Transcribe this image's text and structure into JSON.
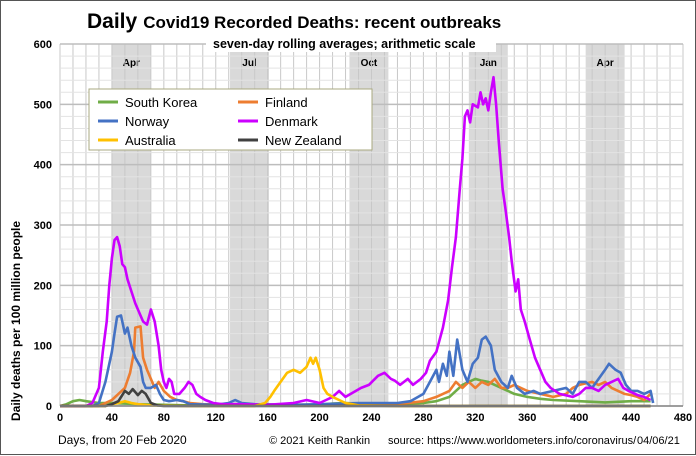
{
  "chart_data": {
    "type": "line",
    "title_bold": "Daily",
    "title_rest": "Covid19 Recorded Deaths: recent outbreaks",
    "subtitle": "seven-day rolling averages; arithmetic scale",
    "xlabel": "Days, from 20 Feb 2020",
    "ylabel": "Daily deaths per 100 million people",
    "xlim": [
      0,
      480
    ],
    "ylim": [
      0,
      600
    ],
    "xticks": [
      0,
      40,
      80,
      120,
      160,
      200,
      240,
      280,
      320,
      360,
      400,
      440,
      480
    ],
    "yticks": [
      0,
      100,
      200,
      300,
      400,
      500,
      600
    ],
    "grid": true,
    "legend_position": "top-left",
    "month_bands": [
      {
        "label": "Apr",
        "start": 40,
        "end": 70
      },
      {
        "label": "Jul",
        "start": 131,
        "end": 161
      },
      {
        "label": "Oct",
        "start": 223,
        "end": 253
      },
      {
        "label": "Jan",
        "start": 315,
        "end": 345
      },
      {
        "label": "Apr",
        "start": 405,
        "end": 435
      }
    ],
    "series": [
      {
        "name": "South Korea",
        "color": "#70ad47",
        "points": [
          [
            0,
            0
          ],
          [
            5,
            3
          ],
          [
            10,
            8
          ],
          [
            15,
            10
          ],
          [
            20,
            8
          ],
          [
            30,
            5
          ],
          [
            40,
            5
          ],
          [
            50,
            4
          ],
          [
            60,
            3
          ],
          [
            80,
            2
          ],
          [
            100,
            1
          ],
          [
            120,
            1
          ],
          [
            180,
            1
          ],
          [
            200,
            2
          ],
          [
            210,
            4
          ],
          [
            220,
            5
          ],
          [
            230,
            4
          ],
          [
            240,
            3
          ],
          [
            260,
            3
          ],
          [
            280,
            5
          ],
          [
            290,
            8
          ],
          [
            300,
            15
          ],
          [
            305,
            25
          ],
          [
            310,
            35
          ],
          [
            315,
            40
          ],
          [
            320,
            45
          ],
          [
            325,
            42
          ],
          [
            330,
            40
          ],
          [
            335,
            35
          ],
          [
            340,
            30
          ],
          [
            350,
            20
          ],
          [
            360,
            15
          ],
          [
            370,
            12
          ],
          [
            380,
            10
          ],
          [
            400,
            8
          ],
          [
            420,
            6
          ],
          [
            440,
            8
          ],
          [
            455,
            8
          ]
        ]
      },
      {
        "name": "Finland",
        "color": "#ed7d31",
        "points": [
          [
            0,
            0
          ],
          [
            30,
            0
          ],
          [
            35,
            5
          ],
          [
            40,
            10
          ],
          [
            45,
            20
          ],
          [
            50,
            30
          ],
          [
            54,
            55
          ],
          [
            57,
            90
          ],
          [
            58,
            130
          ],
          [
            62,
            132
          ],
          [
            64,
            80
          ],
          [
            67,
            60
          ],
          [
            70,
            45
          ],
          [
            73,
            30
          ],
          [
            76,
            40
          ],
          [
            80,
            25
          ],
          [
            85,
            15
          ],
          [
            90,
            10
          ],
          [
            95,
            8
          ],
          [
            100,
            5
          ],
          [
            110,
            3
          ],
          [
            200,
            2
          ],
          [
            230,
            2
          ],
          [
            260,
            3
          ],
          [
            280,
            8
          ],
          [
            290,
            15
          ],
          [
            300,
            25
          ],
          [
            305,
            40
          ],
          [
            310,
            30
          ],
          [
            315,
            40
          ],
          [
            320,
            30
          ],
          [
            325,
            40
          ],
          [
            330,
            35
          ],
          [
            335,
            45
          ],
          [
            340,
            30
          ],
          [
            345,
            30
          ],
          [
            350,
            35
          ],
          [
            360,
            25
          ],
          [
            370,
            20
          ],
          [
            380,
            15
          ],
          [
            390,
            20
          ],
          [
            395,
            30
          ],
          [
            400,
            35
          ],
          [
            410,
            40
          ],
          [
            415,
            35
          ],
          [
            420,
            40
          ],
          [
            425,
            30
          ],
          [
            430,
            25
          ],
          [
            435,
            20
          ],
          [
            440,
            18
          ],
          [
            445,
            15
          ],
          [
            450,
            10
          ],
          [
            455,
            20
          ]
        ]
      },
      {
        "name": "Norway",
        "color": "#4472c4",
        "points": [
          [
            0,
            0
          ],
          [
            25,
            0
          ],
          [
            30,
            5
          ],
          [
            35,
            40
          ],
          [
            38,
            70
          ],
          [
            40,
            90
          ],
          [
            42,
            120
          ],
          [
            44,
            148
          ],
          [
            47,
            150
          ],
          [
            50,
            120
          ],
          [
            52,
            130
          ],
          [
            55,
            100
          ],
          [
            58,
            80
          ],
          [
            62,
            65
          ],
          [
            64,
            40
          ],
          [
            66,
            30
          ],
          [
            70,
            30
          ],
          [
            74,
            35
          ],
          [
            77,
            20
          ],
          [
            80,
            10
          ],
          [
            84,
            8
          ],
          [
            90,
            10
          ],
          [
            95,
            8
          ],
          [
            100,
            3
          ],
          [
            120,
            2
          ],
          [
            130,
            5
          ],
          [
            135,
            10
          ],
          [
            140,
            5
          ],
          [
            150,
            3
          ],
          [
            180,
            2
          ],
          [
            200,
            3
          ],
          [
            230,
            5
          ],
          [
            260,
            5
          ],
          [
            270,
            8
          ],
          [
            280,
            20
          ],
          [
            285,
            40
          ],
          [
            290,
            60
          ],
          [
            292,
            40
          ],
          [
            295,
            70
          ],
          [
            298,
            50
          ],
          [
            300,
            90
          ],
          [
            303,
            50
          ],
          [
            306,
            110
          ],
          [
            310,
            60
          ],
          [
            314,
            40
          ],
          [
            318,
            70
          ],
          [
            322,
            80
          ],
          [
            325,
            110
          ],
          [
            328,
            115
          ],
          [
            332,
            100
          ],
          [
            335,
            60
          ],
          [
            340,
            40
          ],
          [
            345,
            30
          ],
          [
            348,
            50
          ],
          [
            352,
            30
          ],
          [
            358,
            20
          ],
          [
            365,
            25
          ],
          [
            370,
            20
          ],
          [
            380,
            25
          ],
          [
            390,
            30
          ],
          [
            395,
            20
          ],
          [
            400,
            40
          ],
          [
            405,
            40
          ],
          [
            410,
            30
          ],
          [
            415,
            45
          ],
          [
            420,
            60
          ],
          [
            423,
            70
          ],
          [
            428,
            60
          ],
          [
            432,
            55
          ],
          [
            436,
            35
          ],
          [
            440,
            25
          ],
          [
            445,
            25
          ],
          [
            450,
            20
          ],
          [
            455,
            25
          ],
          [
            457,
            5
          ]
        ]
      },
      {
        "name": "Denmark",
        "color": "#cc00ff",
        "points": [
          [
            0,
            0
          ],
          [
            20,
            0
          ],
          [
            25,
            5
          ],
          [
            30,
            30
          ],
          [
            33,
            90
          ],
          [
            36,
            140
          ],
          [
            38,
            200
          ],
          [
            40,
            245
          ],
          [
            42,
            275
          ],
          [
            44,
            280
          ],
          [
            46,
            265
          ],
          [
            48,
            235
          ],
          [
            50,
            230
          ],
          [
            52,
            210
          ],
          [
            55,
            190
          ],
          [
            58,
            170
          ],
          [
            62,
            150
          ],
          [
            64,
            140
          ],
          [
            67,
            135
          ],
          [
            70,
            160
          ],
          [
            73,
            140
          ],
          [
            76,
            100
          ],
          [
            78,
            60
          ],
          [
            80,
            40
          ],
          [
            82,
            30
          ],
          [
            84,
            45
          ],
          [
            86,
            40
          ],
          [
            88,
            20
          ],
          [
            92,
            20
          ],
          [
            96,
            30
          ],
          [
            99,
            40
          ],
          [
            102,
            35
          ],
          [
            105,
            20
          ],
          [
            108,
            15
          ],
          [
            112,
            10
          ],
          [
            118,
            5
          ],
          [
            125,
            3
          ],
          [
            140,
            3
          ],
          [
            160,
            2
          ],
          [
            180,
            5
          ],
          [
            190,
            10
          ],
          [
            200,
            5
          ],
          [
            205,
            10
          ],
          [
            210,
            15
          ],
          [
            215,
            25
          ],
          [
            220,
            15
          ],
          [
            228,
            25
          ],
          [
            232,
            30
          ],
          [
            238,
            35
          ],
          [
            245,
            50
          ],
          [
            250,
            55
          ],
          [
            255,
            45
          ],
          [
            258,
            42
          ],
          [
            262,
            35
          ],
          [
            268,
            45
          ],
          [
            272,
            35
          ],
          [
            278,
            45
          ],
          [
            282,
            55
          ],
          [
            285,
            75
          ],
          [
            290,
            90
          ],
          [
            295,
            130
          ],
          [
            299,
            175
          ],
          [
            302,
            230
          ],
          [
            305,
            280
          ],
          [
            308,
            360
          ],
          [
            310,
            410
          ],
          [
            312,
            480
          ],
          [
            314,
            490
          ],
          [
            316,
            470
          ],
          [
            318,
            500
          ],
          [
            322,
            495
          ],
          [
            324,
            520
          ],
          [
            326,
            500
          ],
          [
            328,
            510
          ],
          [
            330,
            490
          ],
          [
            332,
            520
          ],
          [
            334,
            545
          ],
          [
            336,
            500
          ],
          [
            338,
            440
          ],
          [
            341,
            360
          ],
          [
            343,
            330
          ],
          [
            346,
            280
          ],
          [
            348,
            240
          ],
          [
            351,
            190
          ],
          [
            353,
            210
          ],
          [
            355,
            160
          ],
          [
            358,
            140
          ],
          [
            362,
            110
          ],
          [
            366,
            80
          ],
          [
            370,
            60
          ],
          [
            374,
            40
          ],
          [
            378,
            30
          ],
          [
            385,
            20
          ],
          [
            395,
            15
          ],
          [
            400,
            20
          ],
          [
            405,
            30
          ],
          [
            410,
            30
          ],
          [
            415,
            25
          ],
          [
            420,
            35
          ],
          [
            425,
            40
          ],
          [
            430,
            45
          ],
          [
            434,
            30
          ],
          [
            438,
            25
          ],
          [
            445,
            18
          ],
          [
            450,
            15
          ],
          [
            455,
            10
          ]
        ]
      },
      {
        "name": "Australia",
        "color": "#ffc000",
        "points": [
          [
            0,
            0
          ],
          [
            35,
            0
          ],
          [
            40,
            3
          ],
          [
            45,
            5
          ],
          [
            50,
            8
          ],
          [
            55,
            5
          ],
          [
            60,
            3
          ],
          [
            70,
            1
          ],
          [
            100,
            0
          ],
          [
            150,
            0
          ],
          [
            158,
            5
          ],
          [
            162,
            15
          ],
          [
            165,
            25
          ],
          [
            170,
            40
          ],
          [
            175,
            55
          ],
          [
            180,
            60
          ],
          [
            185,
            55
          ],
          [
            190,
            65
          ],
          [
            193,
            80
          ],
          [
            195,
            70
          ],
          [
            197,
            80
          ],
          [
            200,
            60
          ],
          [
            203,
            30
          ],
          [
            206,
            20
          ],
          [
            210,
            15
          ],
          [
            215,
            10
          ],
          [
            220,
            5
          ],
          [
            225,
            3
          ],
          [
            230,
            1
          ],
          [
            260,
            0
          ],
          [
            455,
            0
          ]
        ]
      },
      {
        "name": "New Zealand",
        "color": "#404040",
        "points": [
          [
            0,
            0
          ],
          [
            35,
            0
          ],
          [
            40,
            3
          ],
          [
            45,
            8
          ],
          [
            50,
            25
          ],
          [
            53,
            20
          ],
          [
            56,
            28
          ],
          [
            60,
            18
          ],
          [
            63,
            25
          ],
          [
            66,
            20
          ],
          [
            70,
            5
          ],
          [
            75,
            1
          ],
          [
            80,
            0
          ],
          [
            455,
            0
          ]
        ]
      }
    ],
    "footer": {
      "copyright": "© 2021  Keith Rankin",
      "source": "source:  https://www.worldometers.info/coronavirus/",
      "date": "04/06/21"
    }
  }
}
